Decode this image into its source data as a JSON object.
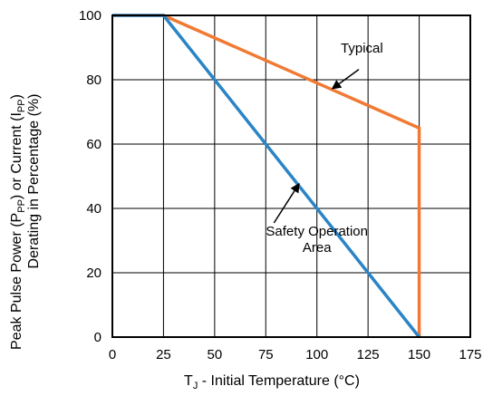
{
  "chart_data": {
    "type": "line",
    "title": "",
    "xlabel": {
      "prefix": "T",
      "sub": "J",
      "suffix": " - Initial Temperature (°C)"
    },
    "ylabel": {
      "line1": {
        "a": "Peak Pulse Power (P",
        "sub1": "PP",
        "b": ") or Current (I",
        "sub2": "PP",
        "c": ")"
      },
      "line2": "Derating in Percentage (%)"
    },
    "xlim": [
      0,
      175
    ],
    "ylim": [
      0,
      100
    ],
    "x_ticks": [
      "0",
      "25",
      "50",
      "75",
      "100",
      "125",
      "150",
      "175"
    ],
    "y_ticks": [
      "0",
      "20",
      "40",
      "60",
      "80",
      "100"
    ],
    "grid": true,
    "series": [
      {
        "name": "Typical",
        "color": "#f07a33",
        "points": [
          [
            0,
            100
          ],
          [
            25,
            100
          ],
          [
            150,
            65
          ],
          [
            150,
            0
          ]
        ]
      },
      {
        "name": "Safety Operation Area",
        "color": "#2a84c6",
        "points": [
          [
            0,
            100
          ],
          [
            25,
            100
          ],
          [
            150,
            0
          ]
        ]
      }
    ],
    "annotations": [
      {
        "lines": [
          "Typical"
        ],
        "text_at": [
          122,
          88.5
        ],
        "arrow_from": [
          120.5,
          83.2
        ],
        "arrow_to": [
          107.5,
          77.2
        ]
      },
      {
        "lines": [
          "Safety Operation",
          "Area"
        ],
        "text_at": [
          100,
          31.5
        ],
        "arrow_from": [
          79,
          35.5
        ],
        "arrow_to": [
          91.3,
          47.7
        ]
      }
    ]
  }
}
